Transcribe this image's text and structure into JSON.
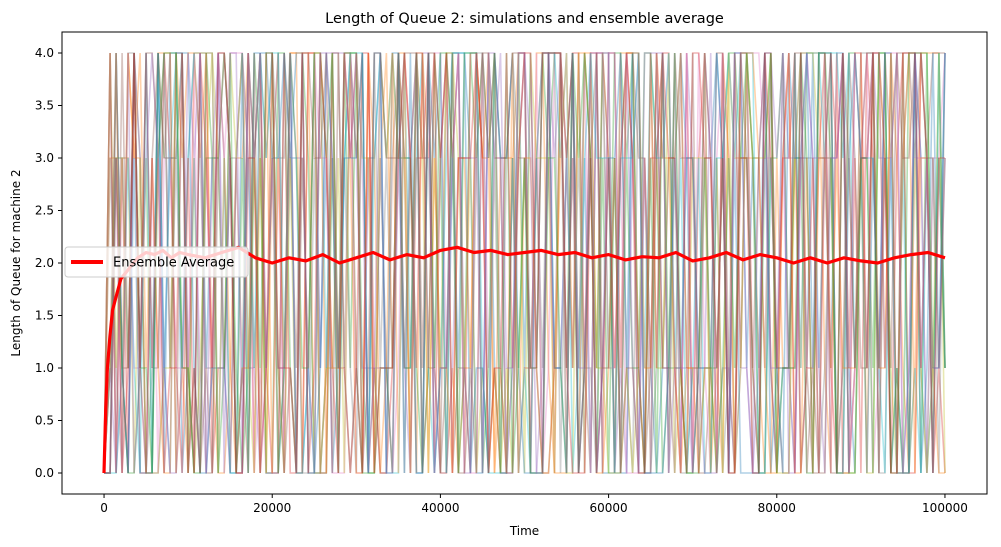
{
  "chart_data": {
    "type": "line",
    "title": "Length of Queue 2: simulations and ensemble average",
    "xlabel": "Time",
    "ylabel": "Length of Queue for machine 2",
    "xlim": [
      -5000,
      105000
    ],
    "ylim": [
      -0.2,
      4.2
    ],
    "x_ticks": [
      0,
      20000,
      40000,
      60000,
      80000,
      100000
    ],
    "x_tick_labels": [
      "0",
      "20000",
      "40000",
      "60000",
      "80000",
      "100000"
    ],
    "y_ticks": [
      0.0,
      0.5,
      1.0,
      1.5,
      2.0,
      2.5,
      3.0,
      3.5,
      4.0
    ],
    "y_tick_labels": [
      "0.0",
      "0.5",
      "1.0",
      "1.5",
      "2.0",
      "2.5",
      "3.0",
      "3.5",
      "4.0"
    ],
    "grid": false,
    "legend": {
      "placement": "center-left",
      "entries": [
        "Ensemble Average"
      ]
    },
    "simulation_traces": {
      "description_levels": [
        0,
        1,
        3,
        4
      ],
      "x_range": [
        0,
        100000
      ],
      "colors": [
        "#1f77b4",
        "#ff7f0e",
        "#2ca02c",
        "#d62728",
        "#9467bd",
        "#8c564b",
        "#e377c2",
        "#7f7f7f",
        "#bcbd22",
        "#17becf"
      ]
    },
    "series": [
      {
        "name": "Ensemble Average",
        "color": "#ff0000",
        "x": [
          0,
          200,
          400,
          700,
          1000,
          1500,
          2000,
          3000,
          4000,
          5000,
          6000,
          7000,
          8000,
          9000,
          10000,
          12000,
          14000,
          16000,
          18000,
          20000,
          22000,
          24000,
          26000,
          28000,
          30000,
          32000,
          34000,
          36000,
          38000,
          40000,
          42000,
          44000,
          46000,
          48000,
          50000,
          52000,
          54000,
          56000,
          58000,
          60000,
          62000,
          64000,
          66000,
          68000,
          70000,
          72000,
          74000,
          76000,
          78000,
          80000,
          82000,
          84000,
          86000,
          88000,
          90000,
          92000,
          94000,
          96000,
          98000,
          100000
        ],
        "y": [
          0.0,
          0.6,
          1.0,
          1.3,
          1.55,
          1.7,
          1.85,
          1.95,
          2.05,
          2.1,
          2.08,
          2.12,
          2.05,
          2.1,
          2.08,
          2.05,
          2.1,
          2.15,
          2.05,
          2.0,
          2.05,
          2.02,
          2.08,
          2.0,
          2.05,
          2.1,
          2.03,
          2.08,
          2.05,
          2.12,
          2.15,
          2.1,
          2.12,
          2.08,
          2.1,
          2.12,
          2.08,
          2.1,
          2.05,
          2.08,
          2.03,
          2.06,
          2.05,
          2.1,
          2.02,
          2.05,
          2.1,
          2.03,
          2.08,
          2.05,
          2.0,
          2.05,
          2.0,
          2.05,
          2.02,
          2.0,
          2.05,
          2.08,
          2.1,
          2.05
        ]
      }
    ]
  }
}
